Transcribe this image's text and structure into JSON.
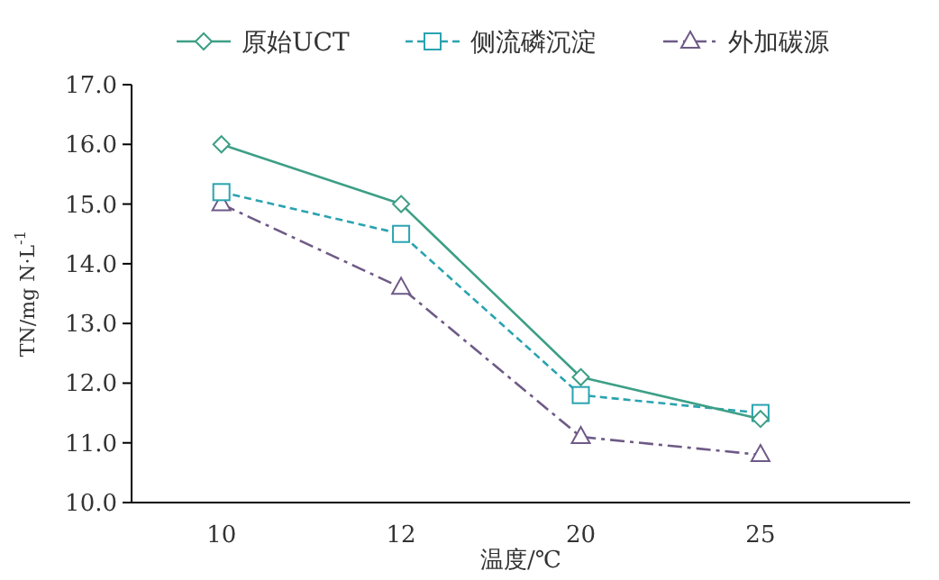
{
  "chart_data": {
    "type": "line",
    "xlabel": "温度/℃",
    "ylabel": "TN/mg N·L$^{-1}$",
    "categories": [
      "10",
      "12",
      "20",
      "25"
    ],
    "series": [
      {
        "name": "原始UCT",
        "color": "#3d9f86",
        "marker": "diamond",
        "line_style": "solid",
        "values": [
          16.0,
          15.0,
          12.1,
          11.4
        ]
      },
      {
        "name": "侧流磷沉淀",
        "color": "#2aa3b0",
        "marker": "square",
        "line_style": "dashed",
        "values": [
          15.2,
          14.5,
          11.8,
          11.5
        ]
      },
      {
        "name": "外加碳源",
        "color": "#6e5a86",
        "marker": "triangle",
        "line_style": "dashdot",
        "values": [
          15.0,
          13.6,
          11.1,
          10.8
        ]
      }
    ],
    "ylim": [
      10.0,
      17.0
    ],
    "yticks": [
      {
        "value": 10,
        "label": "10.0"
      },
      {
        "value": 11,
        "label": "11.0"
      },
      {
        "value": 12,
        "label": "12.0"
      },
      {
        "value": 13,
        "label": "13.0"
      },
      {
        "value": 14,
        "label": "14.0"
      },
      {
        "value": 15,
        "label": "15.0"
      },
      {
        "value": 16,
        "label": "16.0"
      },
      {
        "value": 17,
        "label": "17.0"
      }
    ],
    "legend": "top",
    "grid": false
  }
}
